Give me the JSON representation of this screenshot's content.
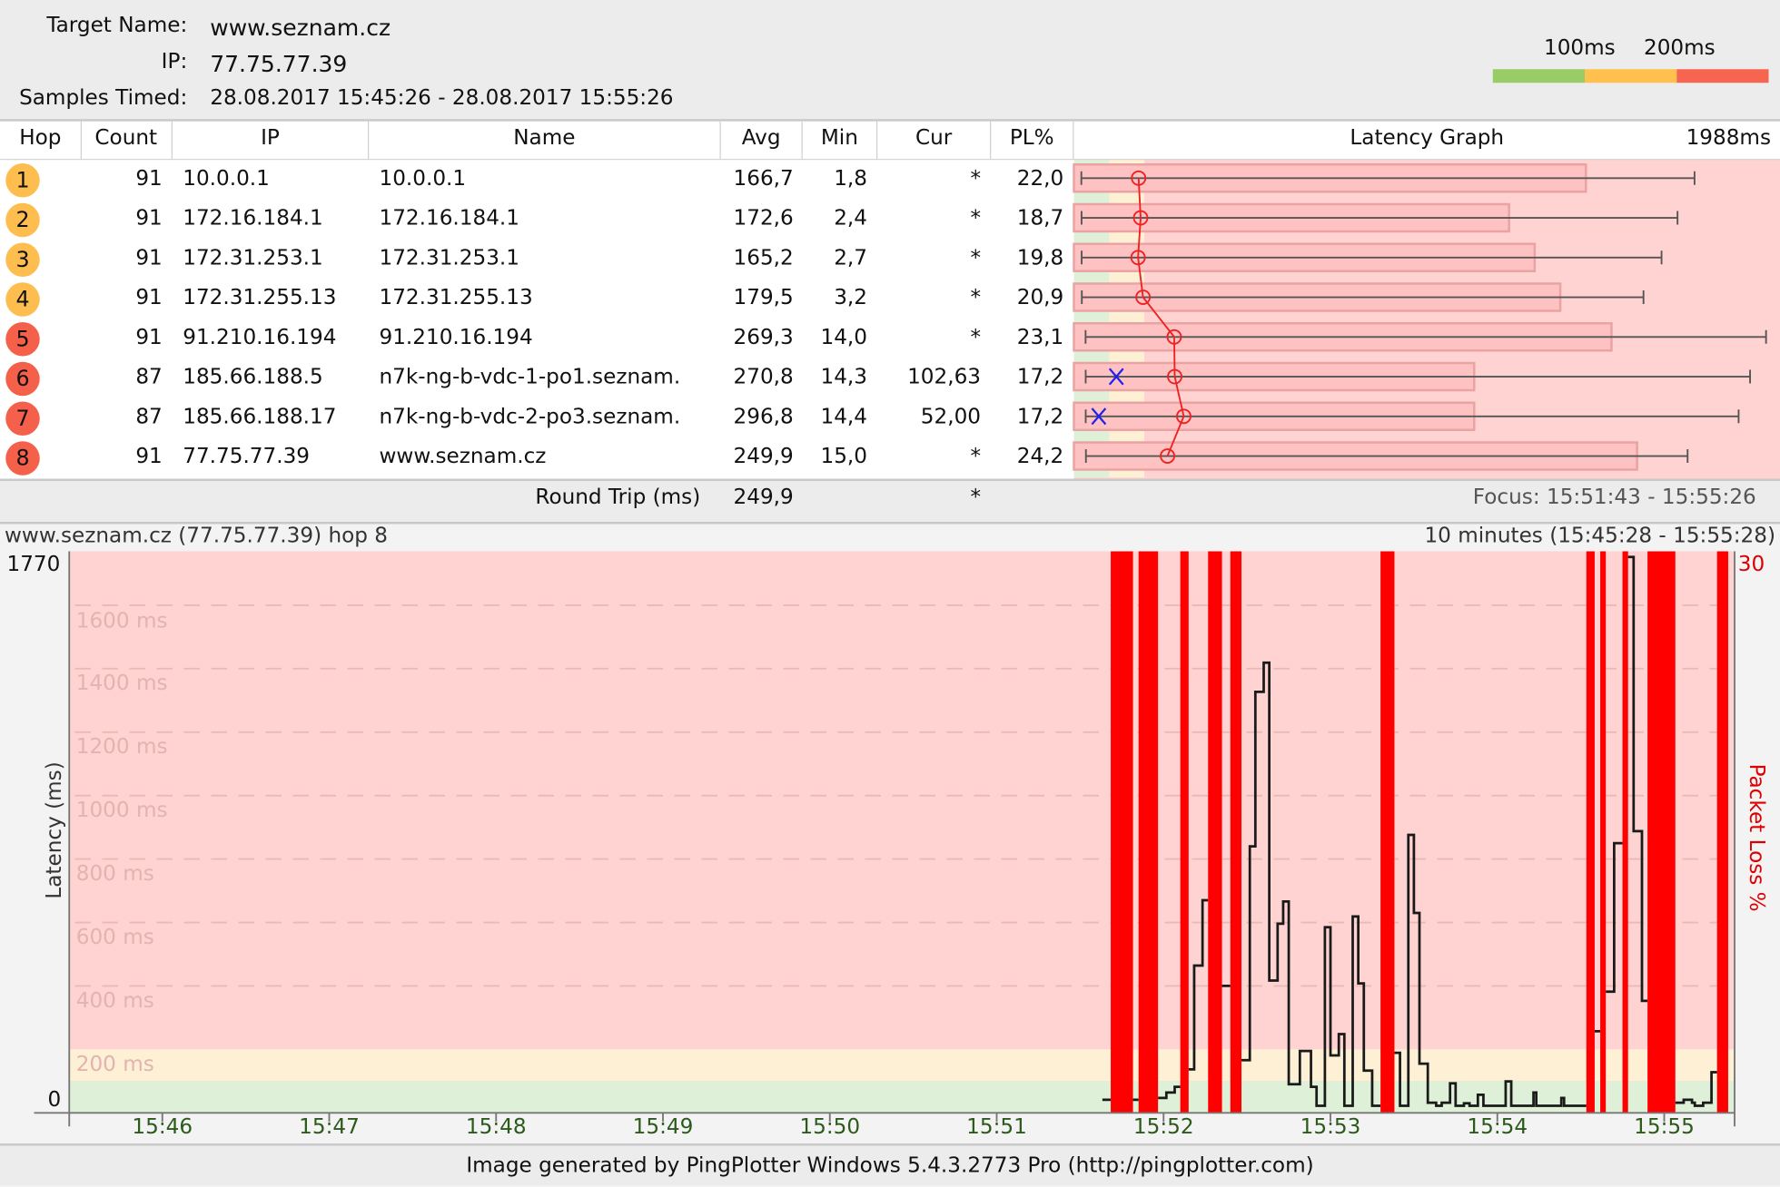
{
  "header": {
    "target_label": "Target Name:",
    "target_value": "www.seznam.cz",
    "ip_label": "IP:",
    "ip_value": "77.75.77.39",
    "samples_label": "Samples Timed:",
    "samples_value": "28.08.2017 15:45:26 - 28.08.2017 15:55:26",
    "legend_100": "100ms",
    "legend_200": "200ms",
    "legend_colors": [
      "#99cc66",
      "#ffc04d",
      "#f76450"
    ]
  },
  "table": {
    "columns": [
      "Hop",
      "Count",
      "IP",
      "Name",
      "Avg",
      "Min",
      "Cur",
      "PL%",
      "Latency Graph",
      "1988ms"
    ],
    "graph_max_ms": 1988,
    "graph_pl_max": 30,
    "rows": [
      {
        "hop": "1",
        "count": "91",
        "ip": "10.0.0.1",
        "name": "10.0.0.1",
        "avg": "166,7",
        "min": "1,8",
        "cur": "*",
        "pl": "22,0",
        "color": "#fdbe4f",
        "avg_ms": 166.7,
        "min_ms": 1.8,
        "max_ms": 1768,
        "cur_ms": null,
        "pl_pct": 22.0
      },
      {
        "hop": "2",
        "count": "91",
        "ip": "172.16.184.1",
        "name": "172.16.184.1",
        "avg": "172,6",
        "min": "2,4",
        "cur": "*",
        "pl": "18,7",
        "color": "#fdbe4f",
        "avg_ms": 172.6,
        "min_ms": 2.4,
        "max_ms": 1719,
        "cur_ms": null,
        "pl_pct": 18.7
      },
      {
        "hop": "3",
        "count": "91",
        "ip": "172.31.253.1",
        "name": "172.31.253.1",
        "avg": "165,2",
        "min": "2,7",
        "cur": "*",
        "pl": "19,8",
        "color": "#fdbe4f",
        "avg_ms": 165.2,
        "min_ms": 2.7,
        "max_ms": 1673,
        "cur_ms": null,
        "pl_pct": 19.8
      },
      {
        "hop": "4",
        "count": "91",
        "ip": "172.31.255.13",
        "name": "172.31.255.13",
        "avg": "179,5",
        "min": "3,2",
        "cur": "*",
        "pl": "20,9",
        "color": "#fdbe4f",
        "avg_ms": 179.5,
        "min_ms": 3.2,
        "max_ms": 1621,
        "cur_ms": null,
        "pl_pct": 20.9
      },
      {
        "hop": "5",
        "count": "91",
        "ip": "91.210.16.194",
        "name": "91.210.16.194",
        "avg": "269,3",
        "min": "14,0",
        "cur": "*",
        "pl": "23,1",
        "color": "#f5604a",
        "avg_ms": 269.3,
        "min_ms": 14.0,
        "max_ms": 1974,
        "cur_ms": null,
        "pl_pct": 23.1
      },
      {
        "hop": "6",
        "count": "87",
        "ip": "185.66.188.5",
        "name": "n7k-ng-b-vdc-1-po1.seznam.",
        "avg": "270,8",
        "min": "14,3",
        "cur": "102,63",
        "pl": "17,2",
        "color": "#f5604a",
        "avg_ms": 270.8,
        "min_ms": 14.3,
        "max_ms": 1928,
        "cur_ms": 102.63,
        "pl_pct": 17.2
      },
      {
        "hop": "7",
        "count": "87",
        "ip": "185.66.188.17",
        "name": "n7k-ng-b-vdc-2-po3.seznam.",
        "avg": "296,8",
        "min": "14,4",
        "cur": "52,00",
        "pl": "17,2",
        "color": "#f5604a",
        "avg_ms": 296.8,
        "min_ms": 14.4,
        "max_ms": 1895,
        "cur_ms": 52.0,
        "pl_pct": 17.2
      },
      {
        "hop": "8",
        "count": "91",
        "ip": "77.75.77.39",
        "name": "www.seznam.cz",
        "avg": "249,9",
        "min": "15,0",
        "cur": "*",
        "pl": "24,2",
        "color": "#f5604a",
        "avg_ms": 249.9,
        "min_ms": 15.0,
        "max_ms": 1748,
        "cur_ms": null,
        "pl_pct": 24.2
      }
    ],
    "round_trip_label": "Round Trip (ms)",
    "round_trip_avg": "249,9",
    "round_trip_cur": "*",
    "focus": "Focus: 15:51:43 - 15:55:26"
  },
  "chart_data": {
    "type": "line",
    "title": "www.seznam.cz (77.75.77.39) hop 8",
    "range_label": "10 minutes (15:45:28 - 15:55:28)",
    "ylabel": "Latency (ms)",
    "y2label": "Packet Loss %",
    "ylim": [
      0,
      1770
    ],
    "y_top_label": "1770",
    "y_bottom_label": "0",
    "y2_top_label": "30",
    "grid_labels": [
      "1600 ms",
      "1400 ms",
      "1200 ms",
      "1000 ms",
      "800 ms",
      "600 ms",
      "400 ms",
      "200 ms"
    ],
    "grid_values": [
      1600,
      1400,
      1200,
      1000,
      800,
      600,
      400,
      200
    ],
    "xlim": [
      "15:45:28",
      "15:55:28"
    ],
    "x_ticks": [
      "15:46",
      "15:47",
      "15:48",
      "15:49",
      "15:50",
      "15:51",
      "15:52",
      "15:53",
      "15:54",
      "15:55"
    ],
    "zones": {
      "green_max_ms": 100,
      "yellow_max_ms": 200,
      "green": "#dff0d8",
      "yellow": "#fdf0d5",
      "red": "#ffd3d1"
    },
    "loss_color": "#ff0000",
    "end_time": "15:55:23",
    "samples": [
      [
        "15:51:38",
        41
      ],
      [
        "15:51:41",
        null
      ],
      [
        "15:51:49",
        41
      ],
      [
        "15:51:51",
        null
      ],
      [
        "15:51:58",
        47
      ],
      [
        "15:52:01",
        64
      ],
      [
        "15:52:04",
        82
      ],
      [
        "15:52:06",
        null
      ],
      [
        "15:52:09",
        137
      ],
      [
        "15:52:11",
        464
      ],
      [
        "15:52:14",
        670
      ],
      [
        "15:52:16",
        null
      ],
      [
        "15:52:21",
        400
      ],
      [
        "15:52:24",
        null
      ],
      [
        "15:52:28",
        166
      ],
      [
        "15:52:31",
        840
      ],
      [
        "15:52:33",
        1327
      ],
      [
        "15:52:36",
        1419
      ],
      [
        "15:52:38",
        417
      ],
      [
        "15:52:41",
        596
      ],
      [
        "15:52:43",
        666
      ],
      [
        "15:52:45",
        90
      ],
      [
        "15:52:49",
        195
      ],
      [
        "15:52:53",
        82
      ],
      [
        "15:52:55",
        22
      ],
      [
        "15:52:58",
        585
      ],
      [
        "15:53:00",
        181
      ],
      [
        "15:53:03",
        248
      ],
      [
        "15:53:05",
        22
      ],
      [
        "15:53:08",
        619
      ],
      [
        "15:53:10",
        408
      ],
      [
        "15:53:12",
        133
      ],
      [
        "15:53:15",
        22
      ],
      [
        "15:53:18",
        null
      ],
      [
        "15:53:23",
        189
      ],
      [
        "15:53:25",
        22
      ],
      [
        "15:53:28",
        876
      ],
      [
        "15:53:30",
        630
      ],
      [
        "15:53:32",
        155
      ],
      [
        "15:53:35",
        32
      ],
      [
        "15:53:38",
        22
      ],
      [
        "15:53:40",
        32
      ],
      [
        "15:53:43",
        93
      ],
      [
        "15:53:45",
        22
      ],
      [
        "15:53:48",
        30
      ],
      [
        "15:53:50",
        22
      ],
      [
        "15:53:53",
        57
      ],
      [
        "15:53:55",
        22
      ],
      [
        "15:54:03",
        99
      ],
      [
        "15:54:05",
        22
      ],
      [
        "15:54:13",
        64
      ],
      [
        "15:54:14",
        22
      ],
      [
        "15:54:23",
        47
      ],
      [
        "15:54:24",
        22
      ],
      [
        "15:54:32",
        null
      ],
      [
        "15:54:35",
        257
      ],
      [
        "15:54:37",
        null
      ],
      [
        "15:54:39",
        382
      ],
      [
        "15:54:42",
        850
      ],
      [
        "15:54:45",
        null
      ],
      [
        "15:54:47",
        1752
      ],
      [
        "15:54:49",
        888
      ],
      [
        "15:54:52",
        353
      ],
      [
        "15:54:54",
        null
      ],
      [
        "15:55:04",
        32
      ],
      [
        "15:55:07",
        41
      ],
      [
        "15:55:10",
        32
      ],
      [
        "15:55:11",
        22
      ],
      [
        "15:55:14",
        32
      ],
      [
        "15:55:17",
        128
      ],
      [
        "15:55:19",
        null
      ]
    ]
  },
  "footer": "Image generated by PingPlotter Windows 5.4.3.2773 Pro (http://pingplotter.com)"
}
